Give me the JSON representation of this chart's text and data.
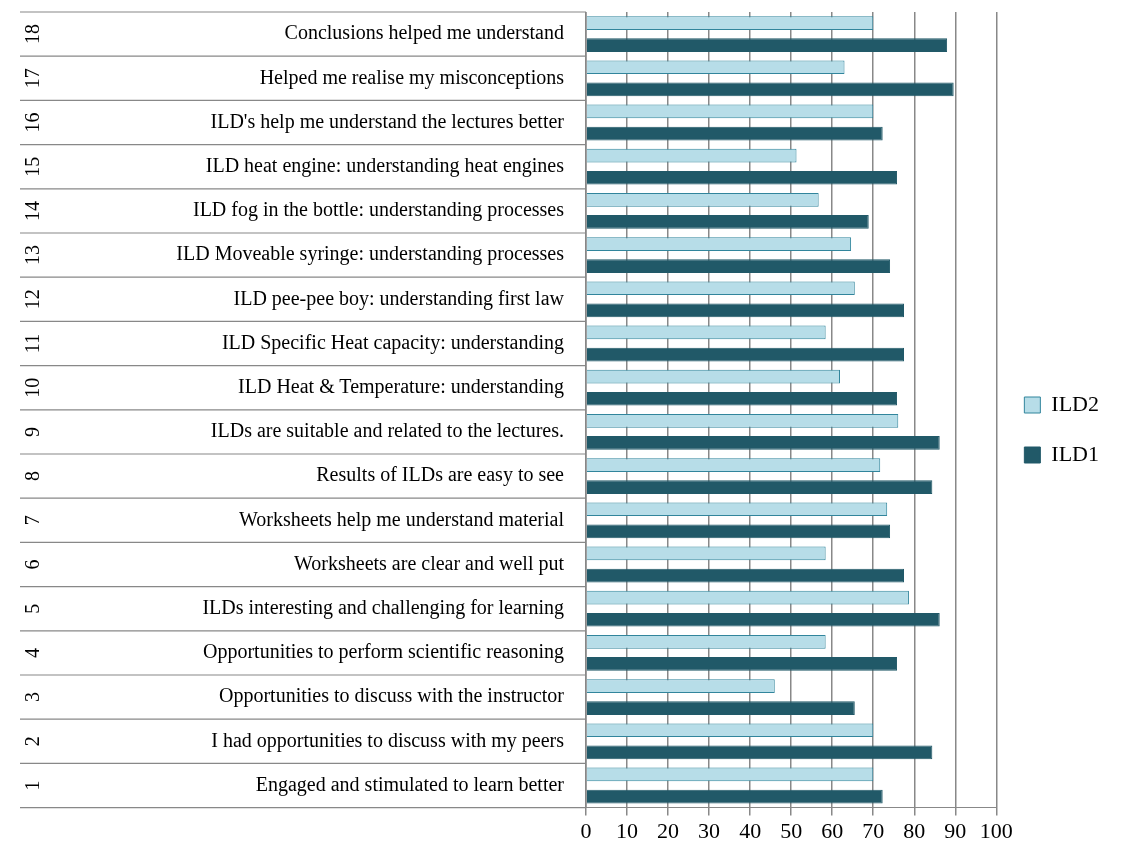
{
  "chart_data": {
    "type": "bar",
    "orientation": "horizontal",
    "categories": [
      "Conclusions helped me understand",
      "Helped me realise my misconceptions",
      "ILD's help me understand the lectures better",
      "ILD heat engine: understanding heat engines",
      "ILD fog in the bottle: understanding processes",
      "ILD Moveable syringe: understanding processes",
      "ILD pee-pee boy: understanding first law",
      "ILD Specific Heat capacity: understanding",
      "ILD Heat & Temperature: understanding",
      "ILDs are suitable and related to the lectures.",
      "Results of ILDs are easy to see",
      "Worksheets help me understand material",
      "Worksheets are clear and well put",
      "ILDs interesting and challenging for learning",
      "Opportunities to perform scientific reasoning",
      "Opportunities to discuss with the instructor",
      "I had opportunities to discuss with my peers",
      "Engaged and stimulated to learn better"
    ],
    "series": [
      {
        "name": "ILD2",
        "color": "#b7dde8",
        "values": [
          70,
          63,
          70,
          51.3,
          56.7,
          64.6,
          65.5,
          58.4,
          61.9,
          76.1,
          71.7,
          73.4,
          58.4,
          78.7,
          58.4,
          46,
          70,
          70
        ]
      },
      {
        "name": "ILD1",
        "color": "#215968",
        "values": [
          88,
          89.6,
          72.3,
          75.8,
          68.9,
          74.1,
          77.5,
          77.5,
          75.8,
          86.2,
          84.4,
          74.1,
          77.5,
          86.2,
          75.8,
          65.5,
          84.4,
          72.3
        ]
      }
    ],
    "annotations": [
      "18",
      "17",
      "16",
      "15",
      "14",
      "13",
      "12",
      "11",
      "10",
      "9",
      "8",
      "7",
      "6",
      "5",
      "4",
      "3",
      "2",
      "1"
    ],
    "xlim": [
      0,
      100
    ],
    "xticks": [
      0,
      10,
      20,
      30,
      40,
      50,
      60,
      70,
      80,
      90,
      100
    ],
    "grid": "x",
    "legend": "right"
  }
}
